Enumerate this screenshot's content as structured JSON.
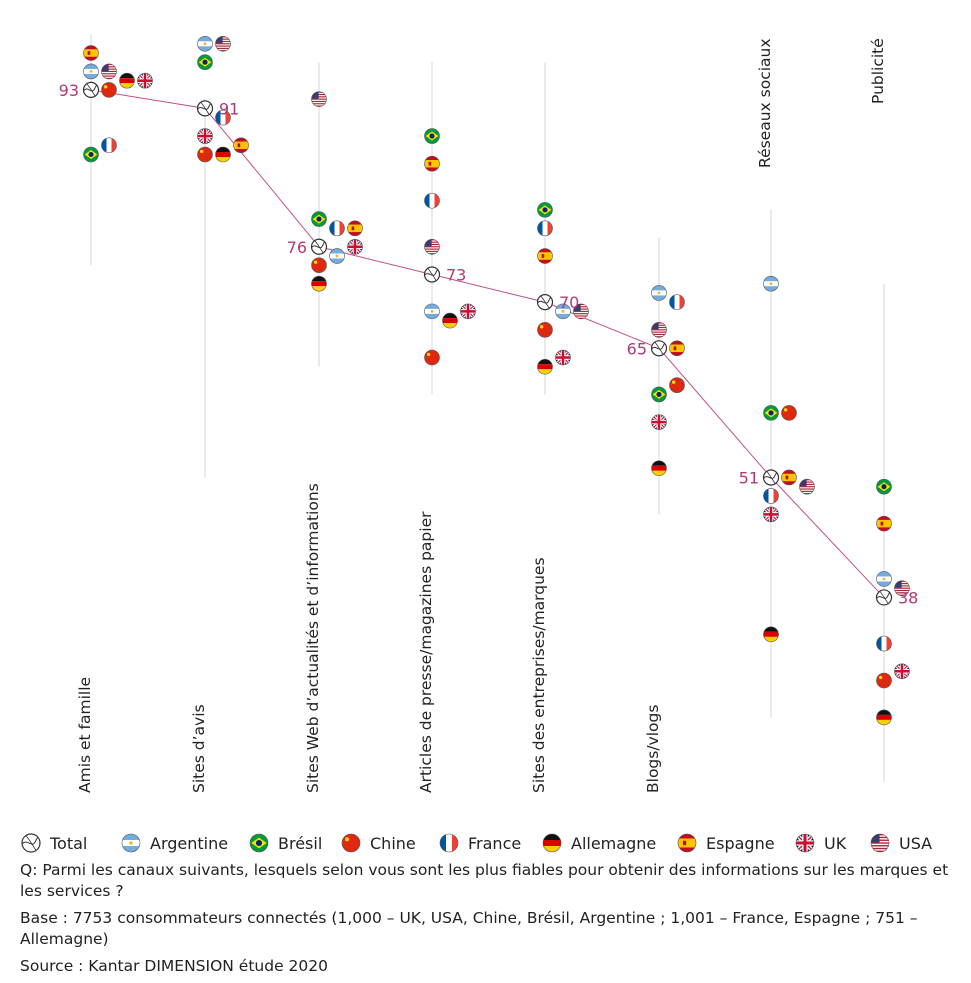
{
  "legend": [
    {
      "key": "total",
      "label": "Total"
    },
    {
      "key": "ar",
      "label": "Argentine"
    },
    {
      "key": "br",
      "label": "Brésil"
    },
    {
      "key": "cn",
      "label": "Chine"
    },
    {
      "key": "fr",
      "label": "France"
    },
    {
      "key": "de",
      "label": "Allemagne"
    },
    {
      "key": "es",
      "label": "Espagne"
    },
    {
      "key": "uk",
      "label": "UK"
    },
    {
      "key": "us",
      "label": "USA"
    }
  ],
  "notes": {
    "question": "Q: Parmi les canaux suivants, lesquels selon vous sont les plus fiables pour obtenir des informations sur les marques et les services ?",
    "base": "Base : 7753 consommateurs connectés (1,000 – UK, USA, Chine, Brésil, Argentine ; 1,001 – France, Espagne ; 751 – Allemagne)",
    "source": "Source : Kantar DIMENSION étude 2020"
  },
  "colors": {
    "line": "#c44d8a",
    "total_label": "#b03a78",
    "axis": "#d5d5d5"
  },
  "chart_data": {
    "type": "scatter",
    "y_unit": "%",
    "categories": [
      "Amis et famille",
      "Sites d’avis",
      "Sites Web d’actualités et d’informations",
      "Articles de presse/magazines papier",
      "Sites des entreprises/marques",
      "Blogs/vlogs",
      "Réseaux sociaux",
      "Publicité"
    ],
    "range": [
      [
        74,
        99
      ],
      [
        51,
        92
      ],
      [
        63,
        96
      ],
      [
        60,
        96
      ],
      [
        60,
        96
      ],
      [
        47,
        77
      ],
      [
        25,
        80
      ],
      [
        18,
        72
      ]
    ],
    "total": [
      93,
      91,
      76,
      73,
      70,
      65,
      51,
      38
    ],
    "series": [
      {
        "key": "ar",
        "name": "Argentine",
        "values": [
          95,
          98,
          75,
          69,
          69,
          71,
          72,
          40
        ]
      },
      {
        "key": "br",
        "name": "Brésil",
        "values": [
          86,
          96,
          79,
          88,
          80,
          60,
          58,
          50
        ]
      },
      {
        "key": "cn",
        "name": "Chine",
        "values": [
          93,
          86,
          74,
          64,
          67,
          61,
          58,
          29
        ]
      },
      {
        "key": "fr",
        "name": "France",
        "values": [
          87,
          90,
          78,
          81,
          78,
          70,
          49,
          33
        ]
      },
      {
        "key": "de",
        "name": "Allemagne",
        "values": [
          94,
          86,
          72,
          68,
          63,
          52,
          34,
          25
        ]
      },
      {
        "key": "es",
        "name": "Espagne",
        "values": [
          97,
          87,
          78,
          85,
          75,
          65,
          51,
          46
        ]
      },
      {
        "key": "uk",
        "name": "UK",
        "values": [
          94,
          88,
          76,
          69,
          64,
          57,
          47,
          30
        ]
      },
      {
        "key": "us",
        "name": "USA",
        "values": [
          95,
          98,
          92,
          76,
          69,
          67,
          50,
          39
        ]
      }
    ]
  }
}
